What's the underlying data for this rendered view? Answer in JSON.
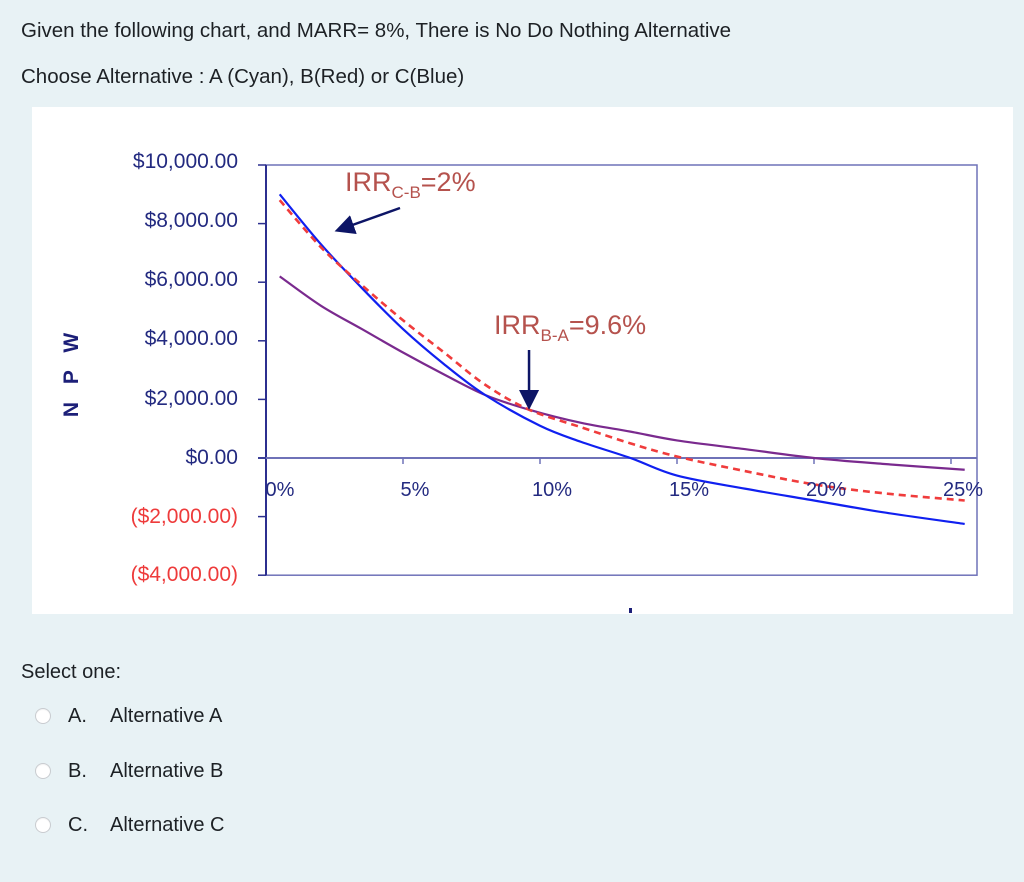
{
  "question": {
    "line1": "Given the following chart, and MARR= 8%,  There is No Do Nothing Alternative",
    "line2": "Choose Alternative : A (Cyan), B(Red) or C(Blue)"
  },
  "chart_data": {
    "type": "line",
    "title": "",
    "xlabel": "",
    "ylabel": "N P W",
    "xlim": [
      0,
      25
    ],
    "ylim": [
      -4000,
      10000
    ],
    "x_tick_labels": [
      "0%",
      "5%",
      "10%",
      "15%",
      "20%",
      "25%"
    ],
    "x_ticks": [
      0,
      5,
      10,
      15,
      20,
      25
    ],
    "y_tick_labels": [
      "$10,000.00",
      "$8,000.00",
      "$6,000.00",
      "$4,000.00",
      "$2,000.00",
      "$0.00",
      "($2,000.00)",
      "($4,000.00)"
    ],
    "y_ticks": [
      10000,
      8000,
      6000,
      4000,
      2000,
      0,
      -2000,
      -4000
    ],
    "negative_label_color": "#ee3b3b",
    "axis_label_color": "#232a80",
    "grid": false,
    "legend": "none",
    "series": [
      {
        "name": "C (Blue)",
        "color": "#1020f0",
        "style": "solid",
        "x": [
          0.5,
          2,
          3.5,
          5,
          6.5,
          8,
          10,
          11.5,
          13.3,
          15,
          17.5,
          20,
          22.5,
          25.5
        ],
        "values": [
          9000,
          7300,
          5800,
          4400,
          3200,
          2150,
          1100,
          550,
          0,
          -600,
          -1050,
          -1450,
          -1850,
          -2250
        ]
      },
      {
        "name": "B (Red)",
        "color": "#f03c3c",
        "style": "dashed",
        "x": [
          0.5,
          2,
          3.5,
          5,
          6.5,
          8,
          9.6,
          11.5,
          13.3,
          15,
          17.5,
          20,
          22.5,
          25.5
        ],
        "values": [
          8800,
          7200,
          5900,
          4700,
          3600,
          2500,
          1650,
          1050,
          500,
          50,
          -450,
          -900,
          -1200,
          -1450
        ]
      },
      {
        "name": "A (Cyan)",
        "color": "#7a2a8e",
        "style": "solid",
        "x": [
          0.5,
          2,
          3.5,
          5,
          6.5,
          8,
          9.6,
          11.5,
          13.3,
          15,
          17.5,
          20,
          22.5,
          25.5
        ],
        "values": [
          6200,
          5200,
          4400,
          3600,
          2850,
          2150,
          1650,
          1200,
          900,
          600,
          300,
          0,
          -200,
          -400
        ]
      }
    ],
    "annotations": [
      {
        "text": "IRR",
        "sub": "C-B",
        "suffix": "=2%",
        "arrow_to": [
          1.5,
          7800
        ]
      },
      {
        "text": "IRR",
        "sub": "B-A",
        "suffix": "=9.6%",
        "arrow_to": [
          9.6,
          1650
        ]
      }
    ]
  },
  "answer": {
    "prompt": "Select one:",
    "options": [
      {
        "letter": "A.",
        "label": "Alternative A",
        "selected": false
      },
      {
        "letter": "B.",
        "label": "Alternative B",
        "selected": false
      },
      {
        "letter": "C.",
        "label": "Alternative C",
        "selected": false
      }
    ]
  }
}
